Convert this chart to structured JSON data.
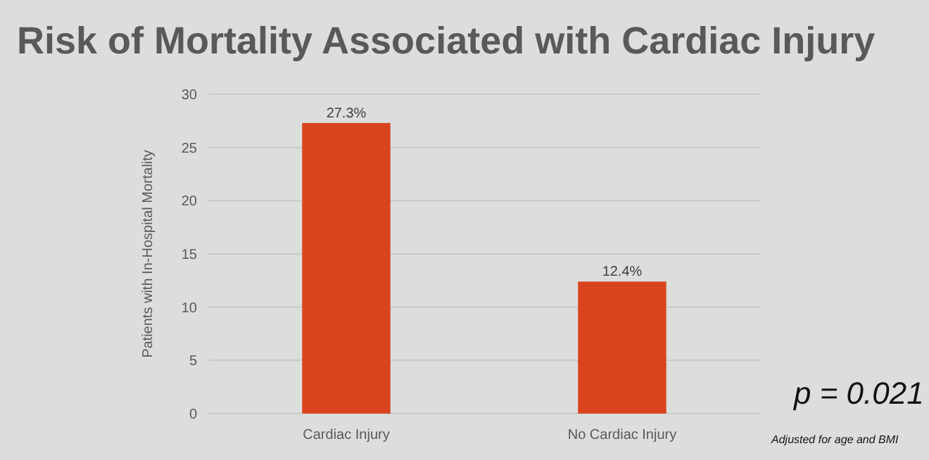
{
  "chart_data": {
    "type": "bar",
    "title": "Risk of Mortality Associated with Cardiac Injury",
    "ylabel": "Patients with In-Hospital Mortality",
    "categories": [
      "Cardiac Injury",
      "No Cardiac Injury"
    ],
    "values": [
      27.3,
      12.4
    ],
    "value_labels": [
      "27.3%",
      "12.4%"
    ],
    "color": "#d9441f",
    "ylim": [
      0,
      30
    ],
    "yticks": [
      0,
      5,
      10,
      15,
      20,
      25,
      30
    ],
    "grid": "y",
    "annotations": [
      "p = 0.021",
      "Adjusted for age and BMI"
    ]
  }
}
